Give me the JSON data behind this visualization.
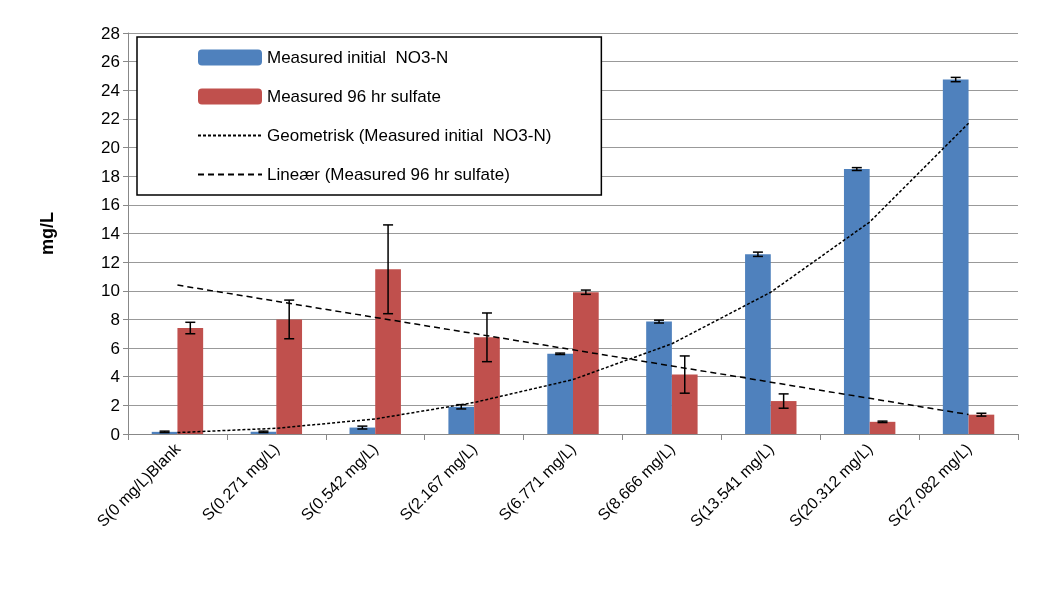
{
  "chart_data": {
    "type": "bar",
    "ylabel": "mg/L",
    "categories": [
      "S(0 mg/L)Blank",
      "S(0.271 mg/L)",
      "S(0.542 mg/L)",
      "S(2.167 mg/L)",
      "S(6.771 mg/L)",
      "S(8.666 mg/L)",
      "S(13.541 mg/L)",
      "S(20.312 mg/L)",
      "S(27.082 mg/L)"
    ],
    "series": [
      {
        "name": "Measured initial  NO3-N",
        "color": "#4f81bd",
        "values": [
          0.15,
          0.15,
          0.45,
          1.9,
          5.6,
          7.85,
          12.55,
          18.5,
          24.75
        ],
        "errors": [
          0.05,
          0.05,
          0.1,
          0.15,
          0.05,
          0.1,
          0.15,
          0.1,
          0.15
        ]
      },
      {
        "name": "Measured 96 hr sulfate",
        "color": "#c0504d",
        "values": [
          7.4,
          8.0,
          11.5,
          6.75,
          9.9,
          4.15,
          2.3,
          0.85,
          1.35
        ],
        "errors": [
          0.4,
          1.35,
          3.1,
          1.7,
          0.15,
          1.3,
          0.5,
          0.05,
          0.1
        ]
      },
      {
        "name": "Geometrisk (Measured initial  NO3-N)",
        "type": "line",
        "color": "#000000",
        "line_style": "dotted",
        "values": [
          0.1,
          0.4,
          1.05,
          2.2,
          3.8,
          6.3,
          9.9,
          14.8,
          21.7
        ]
      },
      {
        "name": "Lineær (Measured 96 hr sulfate)",
        "type": "line",
        "color": "#000000",
        "line_style": "dashed",
        "values": [
          10.4,
          9.27,
          8.14,
          7.01,
          5.88,
          4.75,
          3.62,
          2.49,
          1.36
        ]
      }
    ],
    "ylim": [
      0,
      28
    ],
    "yticks": [
      0,
      2,
      4,
      6,
      8,
      10,
      12,
      14,
      16,
      18,
      20,
      22,
      24,
      26,
      28
    ],
    "grid": "y",
    "legend": "top left",
    "marker": "none"
  }
}
